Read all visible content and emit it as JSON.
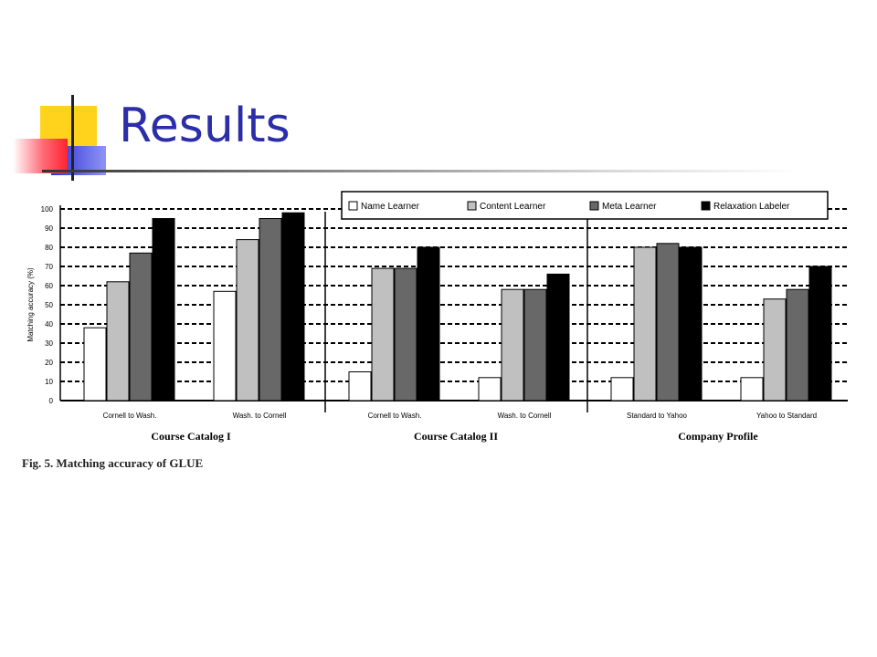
{
  "slide": {
    "title": "Results"
  },
  "figure": {
    "caption": "Fig. 5. Matching accuracy of GLUE"
  },
  "colors": {
    "title": "#2b2ea8",
    "accent_yellow": "#ffd21c",
    "accent_blue": "#2a2fd0",
    "accent_red": "#ff3344"
  },
  "chart_data": {
    "type": "bar",
    "title": "",
    "xlabel": "",
    "ylabel": "Matching accuracy (%)",
    "ylim": [
      0,
      100
    ],
    "yticks": [
      0,
      10,
      20,
      30,
      40,
      50,
      60,
      70,
      80,
      90,
      100
    ],
    "grid": true,
    "legend_position": "top-right",
    "groups": [
      {
        "name": "Course Catalog I",
        "categories": [
          "Cornell to Wash.",
          "Wash. to Cornell"
        ]
      },
      {
        "name": "Course Catalog II",
        "categories": [
          "Cornell to Wash.",
          "Wash. to Cornell"
        ]
      },
      {
        "name": "Company Profile",
        "categories": [
          "Standard to Yahoo",
          "Yahoo to Standard"
        ]
      }
    ],
    "categories": [
      "Cornell to Wash.",
      "Wash. to Cornell",
      "Cornell to Wash.",
      "Wash. to Cornell",
      "Standard to Yahoo",
      "Yahoo to Standard"
    ],
    "series": [
      {
        "name": "Name Learner",
        "color": "#ffffff",
        "values": [
          38,
          57,
          15,
          12,
          12,
          12
        ]
      },
      {
        "name": "Content Learner",
        "color": "#c0c0c0",
        "values": [
          62,
          84,
          69,
          58,
          80,
          53
        ]
      },
      {
        "name": "Meta Learner",
        "color": "#686868",
        "values": [
          77,
          95,
          69,
          58,
          82,
          58
        ]
      },
      {
        "name": "Relaxation Labeler",
        "color": "#000000",
        "values": [
          95,
          98,
          80,
          66,
          80,
          70
        ]
      }
    ]
  }
}
